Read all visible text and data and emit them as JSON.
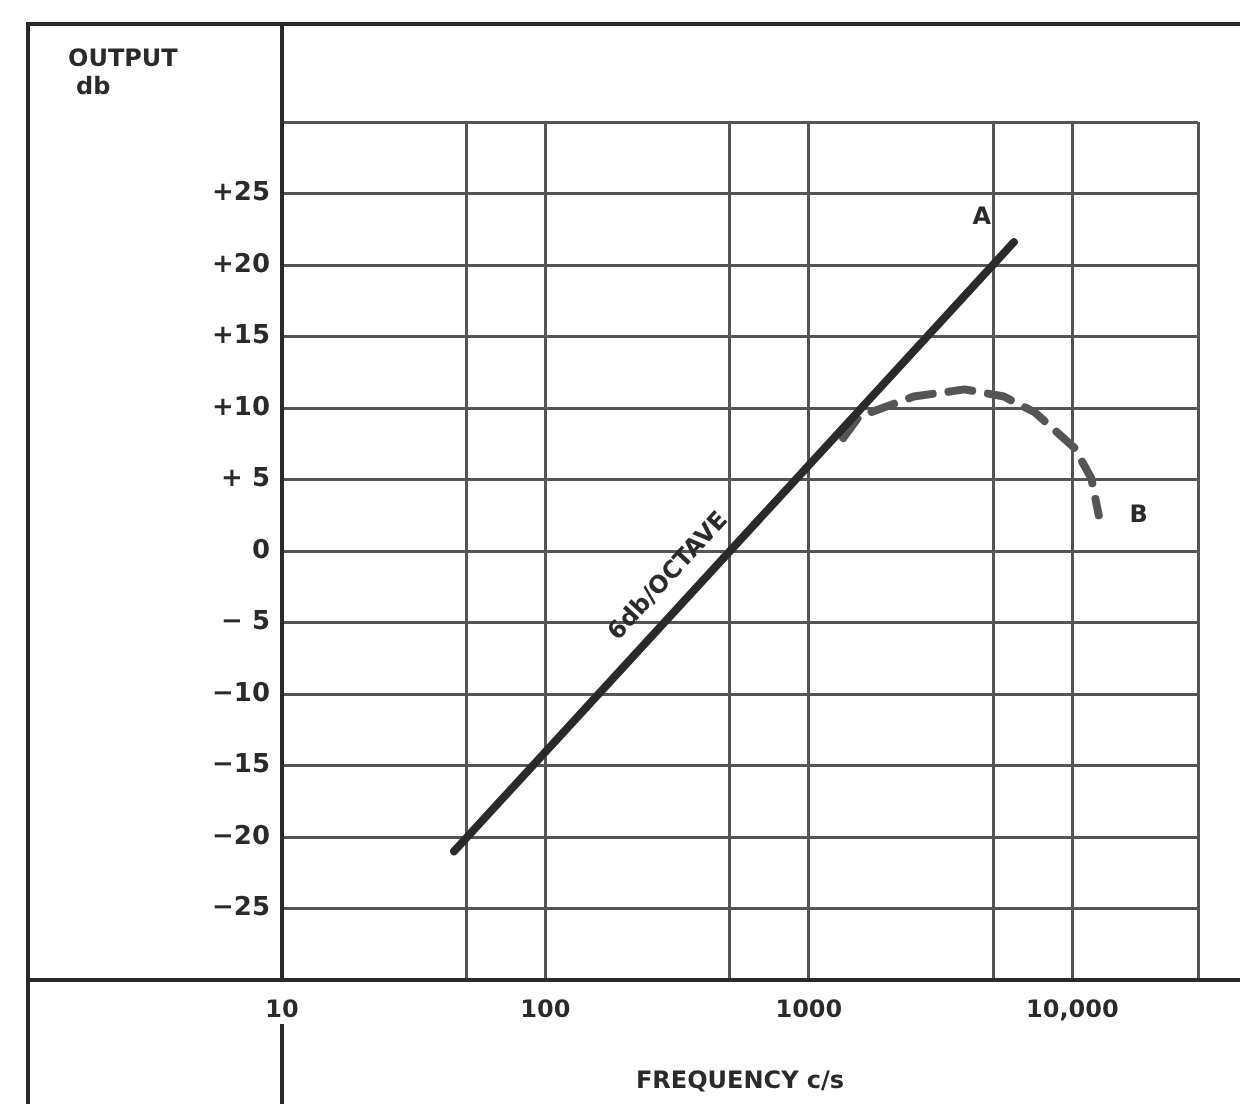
{
  "chart_data": {
    "type": "line",
    "xlabel": "FREQUENCY c/s",
    "ylabel": "OUTPUT db",
    "log": "x",
    "grid": true,
    "marker": "none",
    "xlim": [
      10,
      30000
    ],
    "ylim": [
      -30,
      30
    ],
    "xticks": [
      10,
      {
        "value": 50,
        "label": null
      },
      100,
      {
        "value": 500,
        "label": null
      },
      1000,
      {
        "value": 5000,
        "label": null
      },
      {
        "value": 10000,
        "label": "10,000"
      },
      {
        "value": 30000,
        "label": null
      }
    ],
    "yticks": [
      {
        "value": 30,
        "label": null
      },
      {
        "value": 25,
        "label": "+25"
      },
      {
        "value": 20,
        "label": "+20"
      },
      {
        "value": 15,
        "label": "+15"
      },
      {
        "value": 10,
        "label": "+10"
      },
      {
        "value": 5,
        "label": "+ 5"
      },
      0,
      {
        "value": -5,
        "label": "− 5"
      },
      {
        "value": -10,
        "label": "−10"
      },
      {
        "value": -15,
        "label": "−15"
      },
      {
        "value": -20,
        "label": "−20"
      },
      {
        "value": -25,
        "label": "−25"
      }
    ],
    "series": [
      {
        "name": "A",
        "color": "#2a2a2a",
        "line_style": "solid",
        "x": [
          45,
          6000
        ],
        "values": [
          -21,
          21.6
        ]
      },
      {
        "name": "B",
        "color": "#555555",
        "line_style": "dashed",
        "x": [
          1350,
          1550,
          2500,
          3900,
          5500,
          7200,
          10200,
          11800,
          12600
        ],
        "values": [
          7.9,
          9.4,
          10.8,
          11.3,
          10.8,
          9.7,
          7.2,
          5.1,
          2.5
        ]
      }
    ],
    "annotations": [
      "6db/OCTAVE"
    ]
  }
}
